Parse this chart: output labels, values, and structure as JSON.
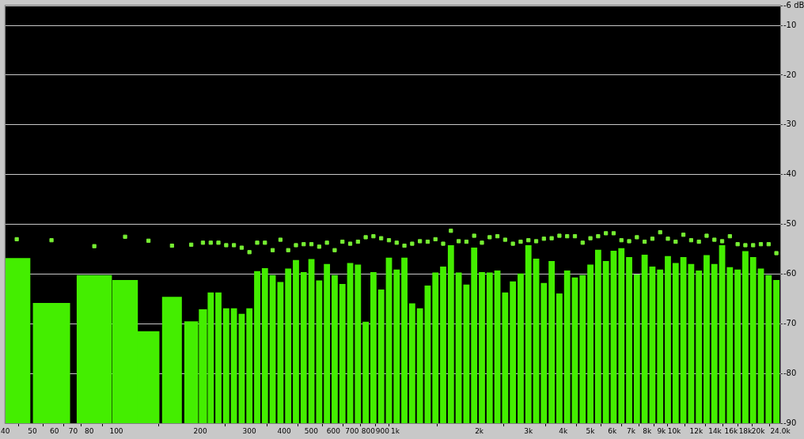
{
  "chart_data": {
    "type": "bar",
    "log": "x",
    "grid": "y",
    "legend": false,
    "x": [
      43.95,
      58.56,
      83.37,
      107.5,
      130.4,
      158.3,
      185.6,
      204.4,
      218.0,
      232.3,
      247.7,
      264.0,
      281.5,
      300.0,
      319.9,
      341.0,
      363.5,
      387.6,
      413.2,
      440.5,
      469.6,
      500.6,
      533.7,
      568.9,
      606.5,
      646.6,
      689.3,
      734.8,
      783.4,
      835.1,
      890.2,
      949.1,
      1011.7,
      1078.5,
      1149.8,
      1225.8,
      1306.7,
      1393.0,
      1485.0,
      1583.1,
      1687.7,
      1799.2,
      1918.1,
      2044.8,
      2179.8,
      2323.7,
      2477.3,
      2640.9,
      2815.4,
      3001.4,
      3199.6,
      3411.0,
      3636.3,
      3876.5,
      4132.6,
      4405.5,
      4696.5,
      5006.8,
      5337.5,
      5690.1,
      6065.9,
      6466.6,
      6893.8,
      7349.1,
      7834.6,
      8352.1,
      8903.9,
      9492.0,
      10119,
      10788,
      11500,
      12260,
      13069,
      13933,
      14853,
      15834,
      16880,
      17995,
      19184,
      20451,
      21803,
      23242
    ],
    "color": "#44ee00",
    "base": [
      -90,
      -90,
      -90,
      -90,
      -90,
      -90,
      -90,
      -90,
      -90,
      -90,
      -90,
      -90,
      -90,
      -90,
      -90,
      -90,
      -90,
      -90,
      -90,
      -90,
      -90,
      -90,
      -90,
      -90,
      -90,
      -90,
      -90,
      -90,
      -90,
      -90,
      -90,
      -90,
      -90,
      -90,
      -90,
      -90,
      -90,
      -90,
      -90,
      -90,
      -90,
      -90,
      -90,
      -90,
      -90,
      -90,
      -90,
      -90,
      -90,
      -90,
      -90,
      -90,
      -90,
      -90,
      -90,
      -90,
      -90,
      -90,
      -90,
      -90,
      -90,
      -90,
      -90,
      -90,
      -90,
      -90,
      -90,
      -90,
      -90,
      -90,
      -90,
      -90,
      -90,
      -90,
      -90,
      -90,
      -90,
      -90,
      -90,
      -90,
      -90,
      -90
    ],
    "values": [
      33.2,
      24.2,
      29.8,
      28.8,
      18.5,
      25.4,
      20.5,
      22.9,
      26.3,
      26.3,
      23.1,
      23.1,
      22.0,
      23.1,
      30.6,
      31.2,
      29.8,
      28.4,
      31.1,
      32.8,
      30.4,
      33.0,
      28.7,
      32.0,
      29.8,
      28.0,
      32.2,
      31.9,
      20.4,
      30.4,
      26.9,
      33.3,
      30.9,
      33.3,
      24.1,
      23.1,
      27.7,
      30.3,
      31.5,
      35.8,
      30.3,
      27.9,
      35.3,
      30.4,
      30.3,
      30.7,
      26.3,
      28.5,
      30.1,
      35.8,
      33.1,
      28.2,
      32.6,
      26.1,
      30.7,
      29.3,
      29.8,
      31.9,
      34.9,
      32.6,
      34.7,
      35.2,
      33.4,
      29.9,
      33.9,
      31.5,
      30.9,
      33.6,
      32.2,
      33.4,
      32.0,
      30.7,
      33.8,
      32.0,
      35.8,
      31.4,
      30.9,
      34.6,
      33.4,
      31.1,
      29.8,
      28.8
    ],
    "series": [
      {
        "type": "scatter",
        "marker": "square",
        "color": "#77ee33",
        "values": [
          -53.0,
          -53.2,
          -54.4,
          -52.5,
          -53.3,
          -54.3,
          -54.1,
          -53.7,
          -53.7,
          -53.7,
          -54.2,
          -54.2,
          -54.7,
          -55.6,
          -53.7,
          -53.7,
          -55.2,
          -53.1,
          -55.2,
          -54.2,
          -54.0,
          -54.0,
          -54.5,
          -53.7,
          -55.2,
          -53.5,
          -53.9,
          -53.5,
          -52.6,
          -52.4,
          -52.8,
          -53.2,
          -53.7,
          -54.3,
          -53.9,
          -53.4,
          -53.5,
          -53.0,
          -53.9,
          -51.3,
          -53.4,
          -53.5,
          -52.3,
          -53.7,
          -52.6,
          -52.4,
          -53.1,
          -53.9,
          -53.5,
          -53.2,
          -53.4,
          -52.9,
          -52.8,
          -52.3,
          -52.4,
          -52.4,
          -53.7,
          -52.8,
          -52.4,
          -51.8,
          -51.8,
          -53.2,
          -53.4,
          -52.6,
          -53.5,
          -52.9,
          -51.6,
          -52.9,
          -53.5,
          -52.1,
          -53.2,
          -53.5,
          -52.3,
          -53.1,
          -53.4,
          -52.4,
          -54.0,
          -54.2,
          -54.2,
          -54.0,
          -54.0,
          -55.8
        ]
      }
    ],
    "xlim": [
      40,
      24000
    ],
    "xticks": [
      40,
      50,
      60,
      70,
      80,
      100,
      200,
      300,
      400,
      500,
      600,
      700,
      800,
      900,
      {
        "value": 1000,
        "label": "1k"
      },
      {
        "value": 2000,
        "label": "2k"
      },
      {
        "value": 3000,
        "label": "3k"
      },
      {
        "value": 4000,
        "label": "4k"
      },
      {
        "value": 5000,
        "label": "5k"
      },
      {
        "value": 6000,
        "label": "6k"
      },
      {
        "value": 7000,
        "label": "7k"
      },
      {
        "value": 8000,
        "label": "8k"
      },
      {
        "value": 9000,
        "label": "9k"
      },
      {
        "value": 10000,
        "label": "10k"
      },
      {
        "value": 12000,
        "label": "12k"
      },
      {
        "value": 14000,
        "label": "14k"
      },
      {
        "value": 16000,
        "label": "16k"
      },
      {
        "value": 18000,
        "label": "18k"
      },
      {
        "value": 20000,
        "label": "20k"
      },
      {
        "value": 24000,
        "label": "24.0k"
      }
    ],
    "ylim": [
      -90,
      -6
    ],
    "yticks": [
      {
        "value": -6,
        "label": "-6 dB"
      },
      -10,
      -20,
      -30,
      -40,
      -50,
      -60,
      -70,
      -80,
      -90
    ]
  }
}
